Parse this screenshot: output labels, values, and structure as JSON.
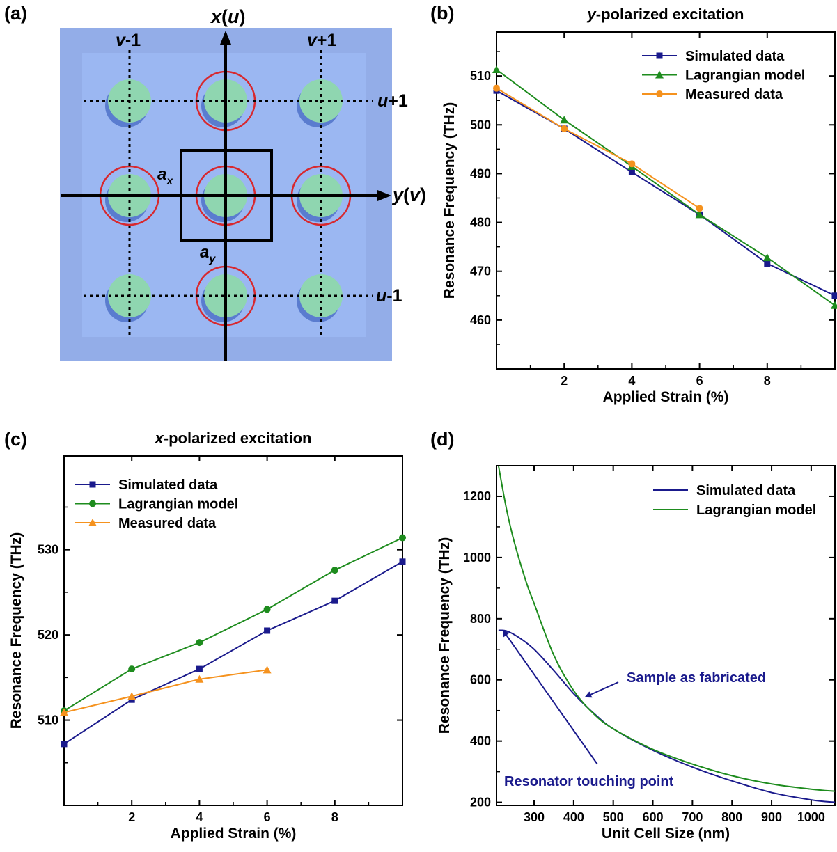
{
  "panel_labels": [
    "(a)",
    "(b)",
    "(c)",
    "(d)"
  ],
  "schematic": {
    "axis_x": {
      "italic": "x",
      "open": "(",
      "inner": "u",
      "close": ")"
    },
    "axis_y": {
      "italic": "y",
      "open": "(",
      "inner": "v",
      "close": ")"
    },
    "col_left": {
      "italic": "v",
      "rest": "-1"
    },
    "col_right": {
      "italic": "v",
      "rest": "+1"
    },
    "row_top": {
      "italic": "u",
      "rest": "+1"
    },
    "row_bottom": {
      "italic": "u",
      "rest": "-1"
    },
    "ax": {
      "base": "a",
      "sub": "x"
    },
    "ay": {
      "base": "a",
      "sub": "y"
    },
    "colors": {
      "background": "#93ade8",
      "inner": "#9bb7f2",
      "disk": "#8fd6b0",
      "shadow": "#5a7ccf",
      "ring": "#d8282e"
    }
  },
  "chart_data": [
    {
      "panel": "b",
      "type": "line",
      "title": {
        "italic": "y",
        "rest": "-polarized excitation"
      },
      "xlabel": "Applied Strain (%)",
      "ylabel": "Resonance Frequency (THz)",
      "xlim": [
        0,
        10
      ],
      "ylim": [
        450,
        519
      ],
      "xticks": [
        2,
        4,
        6,
        8
      ],
      "yticks": [
        460,
        470,
        480,
        490,
        500,
        510
      ],
      "legend_position": "top-right",
      "series": [
        {
          "name": "Simulated data",
          "marker": "square",
          "color": "#1a1a8c",
          "x": [
            0,
            2,
            4,
            6,
            8,
            10
          ],
          "y": [
            507.0,
            499.2,
            490.3,
            481.6,
            471.6,
            465.0
          ]
        },
        {
          "name": "Lagrangian model",
          "marker": "triangle",
          "color": "#1e8c1e",
          "x": [
            0,
            2,
            4,
            6,
            8,
            10
          ],
          "y": [
            511.3,
            501.0,
            491.5,
            481.6,
            472.8,
            463.0
          ]
        },
        {
          "name": "Measured data",
          "marker": "circle",
          "color": "#f5921e",
          "x": [
            0,
            2,
            4,
            6
          ],
          "y": [
            507.5,
            499.2,
            492.0,
            482.9
          ]
        }
      ]
    },
    {
      "panel": "c",
      "type": "line",
      "title": {
        "italic": "x",
        "rest": "-polarized excitation"
      },
      "xlabel": "Applied Strain (%)",
      "ylabel": "Resonance Frequency (THz)",
      "xlim": [
        0,
        10
      ],
      "ylim": [
        500,
        541
      ],
      "xticks": [
        2,
        4,
        6,
        8
      ],
      "yticks": [
        510,
        520,
        530
      ],
      "legend_position": "top-left",
      "series": [
        {
          "name": "Simulated data",
          "marker": "square",
          "color": "#1a1a8c",
          "x": [
            0,
            2,
            4,
            6,
            8,
            10
          ],
          "y": [
            507.2,
            512.4,
            516.0,
            520.5,
            524.0,
            528.6
          ]
        },
        {
          "name": "Lagrangian model",
          "marker": "circle",
          "color": "#1e8c1e",
          "x": [
            0,
            2,
            4,
            6,
            8,
            10
          ],
          "y": [
            511.1,
            516.0,
            519.1,
            523.0,
            527.6,
            531.4
          ]
        },
        {
          "name": "Measured data",
          "marker": "triangle",
          "color": "#f5921e",
          "x": [
            0,
            2,
            4,
            6
          ],
          "y": [
            510.9,
            512.8,
            514.8,
            515.9
          ]
        }
      ]
    },
    {
      "panel": "d",
      "type": "line",
      "xlabel": "Unit Cell Size (nm)",
      "ylabel": "Resonance Frequency (THz)",
      "xlim": [
        205,
        1060
      ],
      "ylim": [
        190,
        1300
      ],
      "xticks": [
        300,
        400,
        500,
        600,
        700,
        800,
        900,
        1000
      ],
      "yticks": [
        200,
        400,
        600,
        800,
        1000,
        1200
      ],
      "legend_position": "top-right",
      "series": [
        {
          "name": "Simulated data",
          "marker": "none",
          "color": "#1a1a8c",
          "x": [
            210,
            230,
            260,
            300,
            350,
            400,
            450,
            500,
            600,
            700,
            800,
            900,
            1000,
            1060
          ],
          "y": [
            762,
            760,
            740,
            700,
            630,
            555,
            492,
            440,
            370,
            315,
            270,
            232,
            208,
            200
          ]
        },
        {
          "name": "Lagrangian model",
          "marker": "none",
          "color": "#1e8c1e",
          "x": [
            210,
            230,
            250,
            280,
            300,
            350,
            400,
            450,
            500,
            600,
            700,
            800,
            900,
            1000,
            1060
          ],
          "y": [
            1300,
            1160,
            1050,
            920,
            850,
            680,
            565,
            490,
            440,
            373,
            325,
            287,
            260,
            243,
            236
          ]
        }
      ],
      "annotations": [
        {
          "text": "Sample as fabricated",
          "point": [
            420,
            538
          ]
        },
        {
          "text": "Resonator touching point",
          "point": [
            215,
            770
          ]
        }
      ]
    }
  ]
}
